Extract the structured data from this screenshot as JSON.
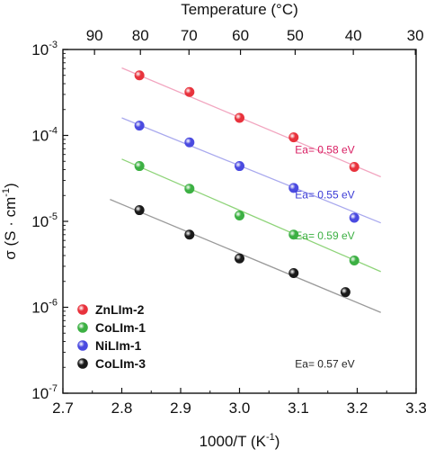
{
  "chart_data": {
    "type": "scatter",
    "xlabel": "1000/T (K",
    "xlabel_sup": "-1",
    "xlabel_tail": ")",
    "ylabel": "σ (S · cm",
    "ylabel_sup": "-1",
    "ylabel_tail": ")",
    "top_xlabel": "Temperature (°C)",
    "xlim": [
      2.7,
      3.3
    ],
    "ylim_log10": [
      -7,
      -3
    ],
    "y_scale": "log",
    "x_ticks": [
      "2.7",
      "2.8",
      "2.9",
      "3.0",
      "3.1",
      "3.2",
      "3.3"
    ],
    "x_tick_values": [
      2.7,
      2.8,
      2.9,
      3.0,
      3.1,
      3.2,
      3.3
    ],
    "y_tick_exponents": [
      -7,
      -6,
      -5,
      -4,
      -3
    ],
    "y_tick_base": "10",
    "top_ticks": [
      "90",
      "80",
      "70",
      "60",
      "50",
      "40",
      "30"
    ],
    "top_tick_celsius": [
      90,
      80,
      70,
      60,
      50,
      40,
      30
    ],
    "grid": false,
    "legend_position": "bottom-left",
    "series": [
      {
        "name": "ZnLIm-2",
        "color": "#e8323c",
        "line_color": "#f2a6c0",
        "x": [
          2.83,
          2.915,
          3.0,
          3.092,
          3.195
        ],
        "y": [
          0.0005,
          0.00032,
          0.00016,
          9.5e-05,
          4.3e-05
        ],
        "fit_x": [
          2.8,
          3.24
        ],
        "fit_y": [
          0.00061,
          3.3e-05
        ],
        "annotation": "Ea= 0.58 eV",
        "annotation_color": "#d81b60"
      },
      {
        "name": "CoLIm-1",
        "color": "#3cb043",
        "line_color": "#8fd47a",
        "x": [
          2.83,
          2.915,
          3.0,
          3.092,
          3.195
        ],
        "y": [
          4.4e-05,
          2.4e-05,
          1.17e-05,
          7e-06,
          3.5e-06
        ],
        "fit_x": [
          2.8,
          3.24
        ],
        "fit_y": [
          5.3e-05,
          2.6e-06
        ],
        "annotation": "Ea= 0.59 eV",
        "annotation_color": "#3cb043"
      },
      {
        "name": "NiLIm-1",
        "color": "#4a4ae0",
        "line_color": "#a9a9ee",
        "x": [
          2.83,
          2.915,
          3.0,
          3.092,
          3.195
        ],
        "y": [
          0.00013,
          8.3e-05,
          4.4e-05,
          2.45e-05,
          1.1e-05
        ],
        "fit_x": [
          2.8,
          3.24
        ],
        "fit_y": [
          0.00016,
          9.6e-06
        ],
        "annotation": "Ea= 0.55 eV",
        "annotation_color": "#3b3bd6"
      },
      {
        "name": "CoLIm-3",
        "color": "#1a1a1a",
        "line_color": "#9a9a9a",
        "x": [
          2.83,
          2.915,
          3.0,
          3.092,
          3.18
        ],
        "y": [
          1.35e-05,
          7e-06,
          3.7e-06,
          2.5e-06,
          1.5e-06
        ],
        "fit_x": [
          2.78,
          3.24
        ],
        "fit_y": [
          1.8e-05,
          8.7e-07
        ],
        "annotation": "Ea= 0.57 eV",
        "annotation_color": "#222222"
      }
    ]
  }
}
